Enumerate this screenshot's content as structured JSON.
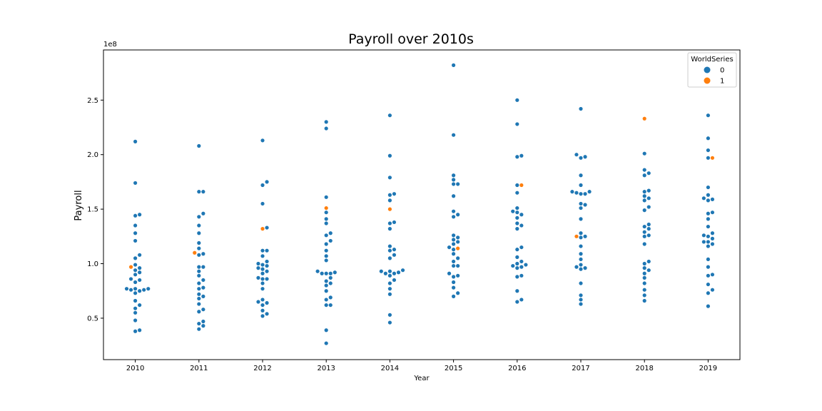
{
  "chart_data": {
    "type": "scatter",
    "subtype": "swarm",
    "title": "Payroll over 2010s",
    "xlabel": "Year",
    "ylabel": "Payroll",
    "y_offset_label": "1e8",
    "categories": [
      "2010",
      "2011",
      "2012",
      "2013",
      "2014",
      "2015",
      "2016",
      "2017",
      "2018",
      "2019"
    ],
    "ylim": [
      0.12,
      2.96
    ],
    "yticks": [
      0.5,
      1.0,
      1.5,
      2.0,
      2.5
    ],
    "ytick_labels": [
      "0.5",
      "1.0",
      "1.5",
      "2.0",
      "2.5"
    ],
    "grid": false,
    "legend": {
      "title": "WorldSeries",
      "position": "top-right",
      "entries": [
        {
          "label": "0",
          "color": "#1f77b4"
        },
        {
          "label": "1",
          "color": "#ff7f0e"
        }
      ]
    },
    "series": [
      {
        "name": "0",
        "color": "#1f77b4",
        "points": {
          "2010": [
            2.12,
            1.74,
            1.45,
            1.44,
            1.35,
            1.28,
            1.21,
            1.08,
            1.05,
            0.99,
            0.96,
            0.94,
            0.92,
            0.9,
            0.86,
            0.85,
            0.83,
            0.77,
            0.77,
            0.77,
            0.76,
            0.76,
            0.75,
            0.73,
            0.66,
            0.62,
            0.59,
            0.55,
            0.48,
            0.39,
            0.38
          ],
          "2011": [
            2.08,
            1.66,
            1.66,
            1.46,
            1.43,
            1.35,
            1.28,
            1.19,
            1.14,
            1.09,
            1.08,
            0.97,
            0.97,
            0.93,
            0.89,
            0.85,
            0.82,
            0.78,
            0.77,
            0.72,
            0.7,
            0.68,
            0.63,
            0.58,
            0.56,
            0.47,
            0.45,
            0.43,
            0.4
          ],
          "2012": [
            2.13,
            1.75,
            1.72,
            1.55,
            1.33,
            1.12,
            1.12,
            1.07,
            1.02,
            1.0,
            0.99,
            0.98,
            0.96,
            0.95,
            0.93,
            0.91,
            0.87,
            0.86,
            0.86,
            0.82,
            0.77,
            0.67,
            0.65,
            0.64,
            0.62,
            0.57,
            0.54,
            0.52
          ],
          "2013": [
            2.3,
            2.24,
            1.61,
            1.47,
            1.41,
            1.37,
            1.28,
            1.26,
            1.21,
            1.18,
            1.12,
            1.07,
            1.03,
            0.93,
            0.92,
            0.91,
            0.91,
            0.91,
            0.87,
            0.84,
            0.82,
            0.8,
            0.75,
            0.69,
            0.67,
            0.62,
            0.62,
            0.39,
            0.27
          ],
          "2014": [
            2.36,
            1.99,
            1.79,
            1.64,
            1.63,
            1.58,
            1.38,
            1.37,
            1.32,
            1.16,
            1.13,
            1.12,
            1.08,
            1.05,
            0.94,
            0.93,
            0.93,
            0.92,
            0.91,
            0.91,
            0.89,
            0.85,
            0.82,
            0.77,
            0.72,
            0.53,
            0.46
          ],
          "2015": [
            2.82,
            2.18,
            1.81,
            1.77,
            1.73,
            1.73,
            1.62,
            1.48,
            1.45,
            1.43,
            1.26,
            1.24,
            1.22,
            1.2,
            1.18,
            1.15,
            1.13,
            1.09,
            1.05,
            1.02,
            0.98,
            0.98,
            0.91,
            0.89,
            0.88,
            0.83,
            0.78,
            0.73,
            0.7
          ],
          "2016": [
            2.5,
            2.28,
            1.99,
            1.98,
            1.72,
            1.65,
            1.51,
            1.48,
            1.47,
            1.45,
            1.42,
            1.37,
            1.35,
            1.32,
            1.15,
            1.13,
            1.06,
            1.02,
            1.0,
            0.99,
            0.98,
            0.97,
            0.96,
            0.89,
            0.88,
            0.75,
            0.67,
            0.65
          ],
          "2017": [
            2.42,
            2.0,
            1.98,
            1.97,
            1.81,
            1.72,
            1.66,
            1.66,
            1.65,
            1.64,
            1.64,
            1.55,
            1.54,
            1.51,
            1.41,
            1.28,
            1.25,
            1.24,
            1.16,
            1.09,
            1.04,
            0.99,
            0.97,
            0.96,
            0.95,
            0.82,
            0.71,
            0.67,
            0.63
          ],
          "2018": [
            2.01,
            1.86,
            1.83,
            1.81,
            1.67,
            1.66,
            1.62,
            1.6,
            1.58,
            1.52,
            1.49,
            1.36,
            1.34,
            1.32,
            1.29,
            1.26,
            1.25,
            1.18,
            1.02,
            1.0,
            0.96,
            0.94,
            0.91,
            0.87,
            0.82,
            0.76,
            0.71,
            0.66
          ],
          "2019": [
            2.36,
            2.15,
            2.04,
            1.97,
            1.7,
            1.63,
            1.6,
            1.59,
            1.58,
            1.47,
            1.46,
            1.41,
            1.34,
            1.28,
            1.26,
            1.25,
            1.23,
            1.2,
            1.2,
            1.18,
            1.16,
            1.04,
            0.97,
            0.9,
            0.89,
            0.81,
            0.76,
            0.73,
            0.61
          ]
        }
      },
      {
        "name": "1",
        "color": "#ff7f0e",
        "points": {
          "2010": [
            0.97
          ],
          "2011": [
            1.1
          ],
          "2012": [
            1.32
          ],
          "2013": [
            1.51
          ],
          "2014": [
            1.5
          ],
          "2015": [
            1.14
          ],
          "2016": [
            1.72
          ],
          "2017": [
            1.25
          ],
          "2018": [
            2.33
          ],
          "2019": [
            1.97
          ]
        }
      }
    ]
  }
}
